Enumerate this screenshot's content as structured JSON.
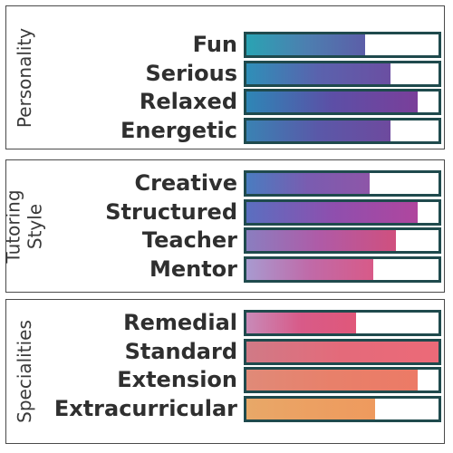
{
  "sections": [
    {
      "title": "Personality",
      "rows": [
        {
          "label": "Fun",
          "value": 0.62
        },
        {
          "label": "Serious",
          "value": 0.75
        },
        {
          "label": "Relaxed",
          "value": 0.89
        },
        {
          "label": "Energetic",
          "value": 0.75
        }
      ]
    },
    {
      "title": "Tutoring\nStyle",
      "rows": [
        {
          "label": "Creative",
          "value": 0.64
        },
        {
          "label": "Structured",
          "value": 0.89
        },
        {
          "label": "Teacher",
          "value": 0.78
        },
        {
          "label": "Mentor",
          "value": 0.66
        }
      ]
    },
    {
      "title": "Specialities",
      "rows": [
        {
          "label": "Remedial",
          "value": 0.57
        },
        {
          "label": "Standard",
          "value": 1.0
        },
        {
          "label": "Extension",
          "value": 0.89
        },
        {
          "label": "Extracurricular",
          "value": 0.67
        }
      ]
    }
  ],
  "colors": {
    "border": "#4a4a4a",
    "bar_border": "#1f4a4d",
    "label": "#2f2f2f",
    "bar_fills": [
      [
        "#2aa3b3",
        "#4c7fb0",
        "#5c5ea8"
      ],
      [
        "#2f8fb8",
        "#5a62ad",
        "#6b4fa2"
      ],
      [
        "#2e86b6",
        "#5c4fa6",
        "#7a3f9a"
      ],
      [
        "#3a82b3",
        "#5a58a8",
        "#6e4a9e"
      ],
      [
        "#4a7cc0",
        "#7a5cb0",
        "#8e56a8"
      ],
      [
        "#5a6fc0",
        "#8e4fae",
        "#b0469e"
      ],
      [
        "#8a7ec0",
        "#b05aa6",
        "#d0507e"
      ],
      [
        "#a89ad0",
        "#c06aa8",
        "#d85a88"
      ],
      [
        "#c88ab8",
        "#d85a88",
        "#e0587a"
      ],
      [
        "#d07a86",
        "#e46a7a",
        "#ec6a78"
      ],
      [
        "#e08a78",
        "#e8806a",
        "#ec7a66"
      ],
      [
        "#e8a868",
        "#eca062",
        "#ee9a5e"
      ]
    ]
  }
}
